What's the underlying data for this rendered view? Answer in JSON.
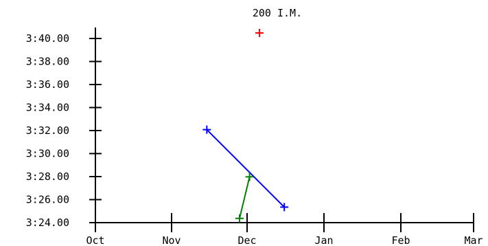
{
  "chart_data": {
    "type": "line",
    "title": "200 I.M.",
    "xlabel": "",
    "ylabel": "",
    "x_ticks": [
      "Oct",
      "Nov",
      "Dec",
      "Jan",
      "Feb",
      "Mar"
    ],
    "y_ticks": [
      "3:24.00",
      "3:26.00",
      "3:28.00",
      "3:30.00",
      "3:32.00",
      "3:34.00",
      "3:36.00",
      "3:38.00",
      "3:40.00"
    ],
    "x_range": [
      "Oct 1",
      "Mar 1"
    ],
    "y_range": [
      "3:24.00",
      "3:40.00"
    ],
    "grid": false,
    "series": [
      {
        "color": "#0000ff",
        "points": [
          {
            "x": "Nov 15",
            "y": "3:32.08"
          },
          {
            "x": "Dec 16",
            "y": "3:25.35"
          }
        ]
      },
      {
        "color": "#008000",
        "points": [
          {
            "x": "Nov 28",
            "y": "3:24.37"
          },
          {
            "x": "Dec 2",
            "y": "3:27.98"
          }
        ]
      },
      {
        "color": "#ff0000",
        "points": [
          {
            "x": "Dec 6",
            "y": "3:40.48"
          }
        ]
      }
    ]
  }
}
